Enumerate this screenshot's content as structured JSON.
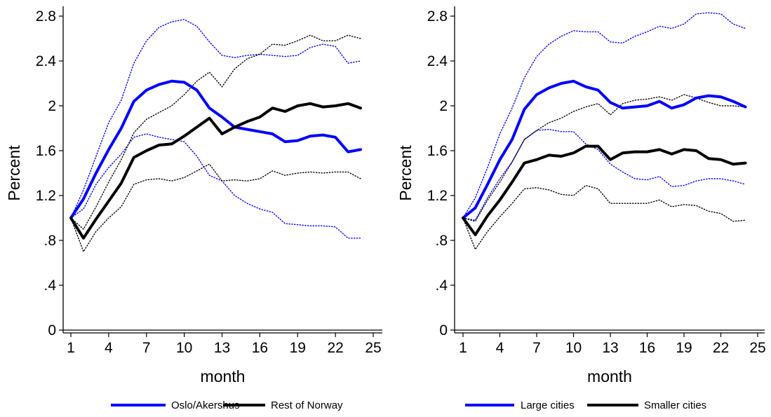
{
  "chart_data": [
    {
      "type": "line",
      "panel": "left",
      "xlabel": "month",
      "ylabel": "Percent",
      "xlim": [
        1,
        25
      ],
      "ylim": [
        0,
        2.8
      ],
      "xticks": [
        1,
        4,
        7,
        10,
        13,
        16,
        19,
        22,
        25
      ],
      "xtick_labels": [
        "1",
        "4",
        "7",
        "10",
        "13",
        "16",
        "19",
        "22",
        "25"
      ],
      "yticks": [
        0,
        0.4,
        0.8,
        1.2,
        1.6,
        2.0,
        2.4,
        2.8
      ],
      "ytick_labels": [
        "0",
        ".4",
        ".8",
        "1.2",
        "1.6",
        "2",
        "2.4",
        "2.8"
      ],
      "legend_position": "bottom",
      "x": [
        1,
        2,
        3,
        4,
        5,
        6,
        7,
        8,
        9,
        10,
        11,
        12,
        13,
        14,
        15,
        16,
        17,
        18,
        19,
        20,
        21,
        22,
        23,
        24
      ],
      "series": [
        {
          "name": "Oslo/Akershus",
          "color": "#0000ff",
          "style": "solid",
          "values": [
            1.0,
            1.17,
            1.4,
            1.61,
            1.8,
            2.04,
            2.14,
            2.19,
            2.22,
            2.21,
            2.14,
            1.98,
            1.9,
            1.81,
            1.79,
            1.77,
            1.75,
            1.68,
            1.69,
            1.73,
            1.74,
            1.72,
            1.59,
            1.61
          ]
        },
        {
          "name": "Rest of Norway",
          "color": "#000000",
          "style": "solid",
          "values": [
            1.0,
            0.82,
            0.99,
            1.15,
            1.31,
            1.54,
            1.6,
            1.65,
            1.66,
            1.73,
            1.81,
            1.89,
            1.75,
            1.81,
            1.86,
            1.9,
            1.98,
            1.95,
            2.0,
            2.02,
            1.99,
            2.0,
            2.02,
            1.98
          ]
        },
        {
          "color": "#0000ff",
          "style": "dotted",
          "values": [
            1.0,
            1.25,
            1.55,
            1.85,
            2.05,
            2.38,
            2.58,
            2.7,
            2.75,
            2.77,
            2.71,
            2.57,
            2.45,
            2.43,
            2.45,
            2.46,
            2.45,
            2.44,
            2.45,
            2.52,
            2.55,
            2.53,
            2.38,
            2.4
          ]
        },
        {
          "color": "#0000ff",
          "style": "dotted",
          "values": [
            1.0,
            1.08,
            1.3,
            1.45,
            1.57,
            1.72,
            1.75,
            1.72,
            1.7,
            1.68,
            1.55,
            1.38,
            1.33,
            1.2,
            1.13,
            1.08,
            1.05,
            0.95,
            0.94,
            0.93,
            0.93,
            0.92,
            0.82,
            0.82
          ]
        },
        {
          "color": "#000000",
          "style": "dotted",
          "values": [
            1.0,
            0.9,
            1.1,
            1.32,
            1.52,
            1.76,
            1.88,
            1.94,
            2.0,
            2.1,
            2.22,
            2.3,
            2.17,
            2.33,
            2.42,
            2.46,
            2.55,
            2.54,
            2.58,
            2.63,
            2.58,
            2.58,
            2.63,
            2.6
          ]
        },
        {
          "color": "#000000",
          "style": "dotted",
          "values": [
            1.0,
            0.7,
            0.88,
            1.0,
            1.1,
            1.3,
            1.34,
            1.35,
            1.33,
            1.36,
            1.42,
            1.48,
            1.33,
            1.34,
            1.33,
            1.35,
            1.42,
            1.38,
            1.4,
            1.41,
            1.4,
            1.41,
            1.41,
            1.35
          ]
        }
      ]
    },
    {
      "type": "line",
      "panel": "right",
      "xlabel": "month",
      "ylabel": "Percent",
      "xlim": [
        1,
        25
      ],
      "ylim": [
        0,
        2.8
      ],
      "xticks": [
        1,
        4,
        7,
        10,
        13,
        16,
        19,
        22,
        25
      ],
      "xtick_labels": [
        "1",
        "4",
        "7",
        "10",
        "13",
        "16",
        "19",
        "22",
        "25"
      ],
      "yticks": [
        0,
        0.4,
        0.8,
        1.2,
        1.6,
        2.0,
        2.4,
        2.8
      ],
      "ytick_labels": [
        "0",
        ".4",
        ".8",
        "1.2",
        "1.6",
        "2",
        "2.4",
        "2.8"
      ],
      "legend_position": "bottom",
      "x": [
        1,
        2,
        3,
        4,
        5,
        6,
        7,
        8,
        9,
        10,
        11,
        12,
        13,
        14,
        15,
        16,
        17,
        18,
        19,
        20,
        21,
        22,
        23,
        24
      ],
      "series": [
        {
          "name": "Large cities",
          "color": "#0000ff",
          "style": "solid",
          "values": [
            1.0,
            1.09,
            1.3,
            1.52,
            1.7,
            1.97,
            2.1,
            2.16,
            2.2,
            2.22,
            2.17,
            2.14,
            2.03,
            1.98,
            1.99,
            2.0,
            2.04,
            1.98,
            2.01,
            2.07,
            2.09,
            2.08,
            2.04,
            1.99
          ]
        },
        {
          "name": "Smaller cities",
          "color": "#000000",
          "style": "solid",
          "values": [
            1.0,
            0.85,
            1.02,
            1.16,
            1.32,
            1.49,
            1.52,
            1.56,
            1.55,
            1.58,
            1.64,
            1.64,
            1.52,
            1.58,
            1.59,
            1.59,
            1.61,
            1.57,
            1.61,
            1.6,
            1.53,
            1.52,
            1.48,
            1.49
          ]
        },
        {
          "color": "#0000ff",
          "style": "dotted",
          "values": [
            1.0,
            1.18,
            1.45,
            1.75,
            1.98,
            2.25,
            2.44,
            2.55,
            2.62,
            2.67,
            2.66,
            2.66,
            2.57,
            2.56,
            2.62,
            2.66,
            2.71,
            2.69,
            2.73,
            2.82,
            2.83,
            2.82,
            2.73,
            2.69
          ]
        },
        {
          "color": "#0000ff",
          "style": "dotted",
          "values": [
            1.0,
            0.98,
            1.18,
            1.35,
            1.5,
            1.7,
            1.78,
            1.79,
            1.77,
            1.77,
            1.66,
            1.61,
            1.48,
            1.41,
            1.35,
            1.34,
            1.37,
            1.28,
            1.29,
            1.33,
            1.35,
            1.35,
            1.33,
            1.3
          ]
        },
        {
          "color": "#000000",
          "style": "dotted",
          "values": [
            1.0,
            0.97,
            1.16,
            1.32,
            1.5,
            1.7,
            1.78,
            1.85,
            1.89,
            1.95,
            1.99,
            2.02,
            1.92,
            2.02,
            2.05,
            2.06,
            2.08,
            2.05,
            2.1,
            2.07,
            2.03,
            2.0,
            2.0,
            1.99
          ]
        },
        {
          "color": "#000000",
          "style": "dotted",
          "values": [
            1.0,
            0.72,
            0.88,
            1.01,
            1.13,
            1.26,
            1.27,
            1.25,
            1.21,
            1.2,
            1.29,
            1.26,
            1.13,
            1.13,
            1.13,
            1.13,
            1.16,
            1.1,
            1.12,
            1.11,
            1.06,
            1.04,
            0.97,
            0.98
          ]
        }
      ]
    }
  ]
}
